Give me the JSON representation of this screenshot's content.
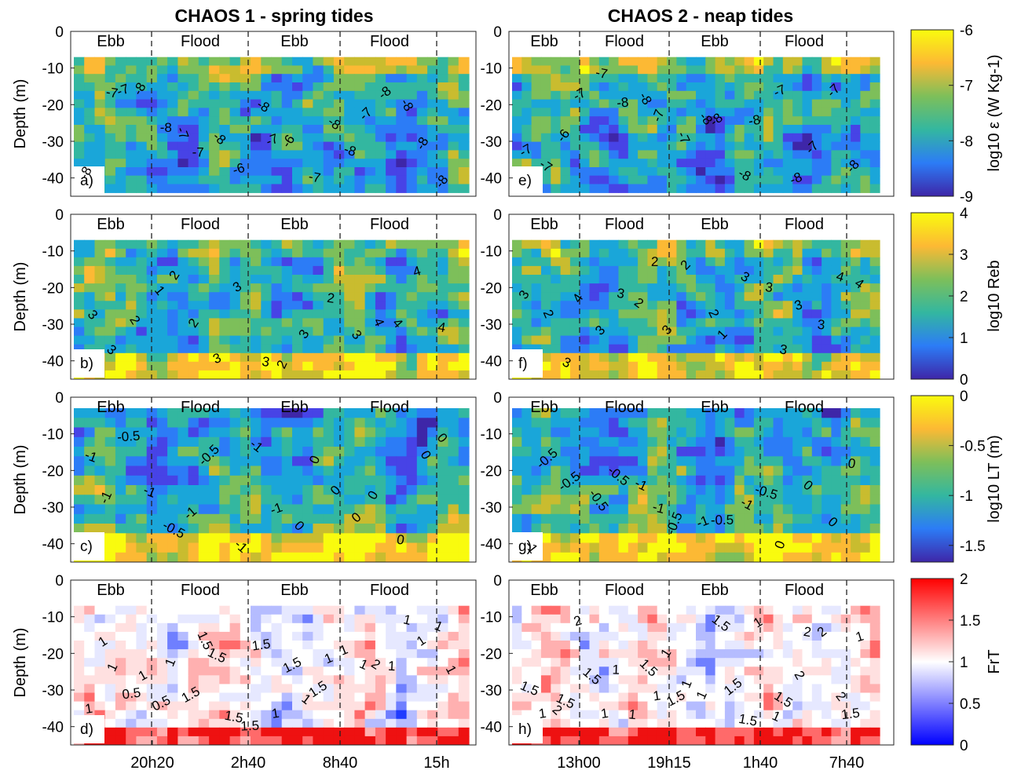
{
  "column_titles": [
    "CHAOS 1 - spring tides",
    "CHAOS 2 - neap tides"
  ],
  "y_axis_label": "Depth (m)",
  "y_ticks": [
    0,
    -10,
    -20,
    -30,
    -40
  ],
  "x_ticks_left": [
    "20h20",
    "2h40",
    "8h40",
    "15h"
  ],
  "x_ticks_right": [
    "13h00",
    "19h15",
    "1h40",
    "7h40"
  ],
  "tide_phases": [
    "Ebb",
    "Flood",
    "Ebb",
    "Flood"
  ],
  "colorbars": [
    {
      "label": "log10 ε (W Kg-1)",
      "ticks": [
        "-6",
        "-7",
        "-8",
        "-9"
      ],
      "colors": [
        "#f9fb0e",
        "#33b7a0",
        "#3e26a8"
      ]
    },
    {
      "label": "log10 Reb",
      "ticks": [
        "4",
        "3",
        "2",
        "1",
        "0"
      ],
      "colors": [
        "#f9fb0e",
        "#33b7a0",
        "#3e26a8"
      ]
    },
    {
      "label": "log10 LT (m)",
      "ticks": [
        "0",
        "-0.5",
        "-1",
        "-1.5"
      ],
      "colors": [
        "#f9fb0e",
        "#33b7a0",
        "#3e26a8"
      ]
    },
    {
      "label": "FrT",
      "ticks": [
        "2",
        "1.5",
        "1",
        "0.5",
        "0"
      ],
      "colors": [
        "#ff0000",
        "#ffffff",
        "#0000ff"
      ]
    }
  ],
  "chart_data": [
    {
      "panel": "a)",
      "type": "heatmap",
      "variable": "log10 ε (W Kg-1)",
      "campaign": "CHAOS 1 - spring tides",
      "ylim": [
        -45,
        0
      ],
      "contour_labels": [
        "-8",
        "-7",
        "-7",
        "-8",
        "-8",
        "-7",
        "-7",
        "-8",
        "-6",
        "-8",
        "-7",
        "-6",
        "-7",
        "-8",
        "-8",
        "-7",
        "-8",
        "-8",
        "-8",
        "-8"
      ]
    },
    {
      "panel": "b)",
      "type": "heatmap",
      "variable": "log10 Reb",
      "campaign": "CHAOS 1 - spring tides",
      "ylim": [
        -45,
        0
      ],
      "contour_labels": [
        "3",
        "3",
        "2",
        "1",
        "2",
        "2",
        "3",
        "3",
        "3",
        "2",
        "3",
        "2",
        "3",
        "4",
        "4",
        "4",
        "4"
      ]
    },
    {
      "panel": "c)",
      "type": "heatmap",
      "variable": "log10 LT (m)",
      "campaign": "CHAOS 1 - spring tides",
      "ylim": [
        -45,
        0
      ],
      "contour_labels": [
        "-1",
        "-1",
        "-0.5",
        "-1",
        "-0.5",
        "-1",
        "-0.5",
        "-1",
        "-1",
        "-1",
        "0",
        "0",
        "0",
        "0",
        "0",
        "0",
        "0",
        "0"
      ]
    },
    {
      "panel": "d)",
      "type": "heatmap",
      "variable": "FrT",
      "campaign": "CHAOS 1 - spring tides",
      "ylim": [
        -45,
        0
      ],
      "contour_labels": [
        "1",
        "1",
        "1",
        "0.5",
        "1",
        "0.5",
        "1",
        "1.5",
        "1.5",
        "1.5",
        "1.5",
        "1.5",
        "1.5",
        "1",
        "1.5",
        "1",
        "1.5",
        "1",
        "1",
        "1",
        "2",
        "1",
        "1",
        "1",
        "1",
        "1"
      ]
    },
    {
      "panel": "e)",
      "type": "heatmap",
      "variable": "log10 ε (W Kg-1)",
      "campaign": "CHAOS 2 - neap tides",
      "ylim": [
        -45,
        0
      ],
      "contour_labels": [
        "-7",
        "-7",
        "-6",
        "-7",
        "-7",
        "-8",
        "-8",
        "-7",
        "-7",
        "-8",
        "-8",
        "-8",
        "-8",
        "-7",
        "-8",
        "-7",
        "-7",
        "-8"
      ]
    },
    {
      "panel": "f)",
      "type": "heatmap",
      "variable": "log10 Reb",
      "campaign": "CHAOS 2 - neap tides",
      "ylim": [
        -45,
        0
      ],
      "contour_labels": [
        "3",
        "2",
        "3",
        "4",
        "3",
        "3",
        "2",
        "2",
        "3",
        "2",
        "2",
        "1",
        "3",
        "3",
        "3",
        "3",
        "3",
        "4",
        "4"
      ]
    },
    {
      "panel": "g)",
      "type": "heatmap",
      "variable": "log10 LT (m)",
      "campaign": "CHAOS 2 - neap tides",
      "ylim": [
        -45,
        0
      ],
      "contour_labels": [
        "-1",
        "-0.5",
        "-0.5",
        "-0.5",
        "-0.5",
        "-1",
        "-1",
        "-0.5",
        "-1",
        "-0.5",
        "-1",
        "-0.5",
        "0",
        "0",
        "0",
        "0"
      ]
    },
    {
      "panel": "h)",
      "type": "heatmap",
      "variable": "FrT",
      "campaign": "CHAOS 2 - neap tides",
      "ylim": [
        -45,
        0
      ],
      "contour_labels": [
        "1.5",
        "1",
        "2",
        "1.5",
        "2",
        "1.5",
        "1",
        "1",
        "1",
        "1.5",
        "1",
        "1",
        "1.5",
        "1",
        "1",
        "1.5",
        "1.5",
        "1.5",
        "1",
        "1",
        "1.5",
        "2",
        "2",
        "2",
        "2",
        "1.5",
        "1"
      ]
    }
  ]
}
